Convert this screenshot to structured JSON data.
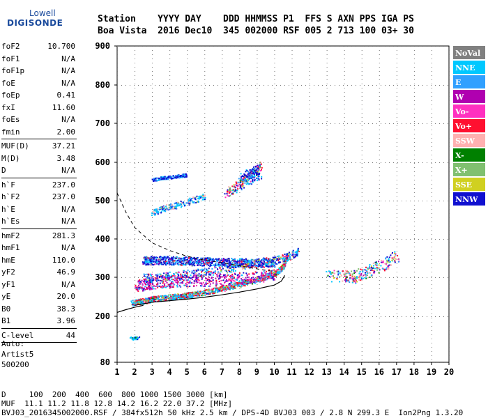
{
  "logo": {
    "line1": "Lowell",
    "line2": "DIGISONDE"
  },
  "header": {
    "line1": "Station    YYYY DAY    DDD HHMMSS P1  FFS S AXN PPS IGA PS",
    "line2": "Boa Vista  2016 Dec10  345 002000 RSF 005 2 713 100 03+ 30"
  },
  "params": [
    {
      "label": "foF2",
      "value": "10.700"
    },
    {
      "label": "foF1",
      "value": "N/A"
    },
    {
      "label": "foF1p",
      "value": "N/A"
    },
    {
      "label": "foE",
      "value": "N/A"
    },
    {
      "label": "foEp",
      "value": "0.41"
    },
    {
      "label": "fxI",
      "value": "11.60"
    },
    {
      "label": "foEs",
      "value": "N/A"
    },
    {
      "label": "fmin",
      "value": "2.00",
      "sep": true
    },
    {
      "label": "MUF(D)",
      "value": "37.21"
    },
    {
      "label": "M(D)",
      "value": "3.48"
    },
    {
      "label": "D",
      "value": "N/A",
      "sep": true
    },
    {
      "label": "h`F",
      "value": "237.0"
    },
    {
      "label": "h`F2",
      "value": "237.0"
    },
    {
      "label": "h`E",
      "value": "N/A"
    },
    {
      "label": "h`Es",
      "value": "N/A",
      "sep": true
    },
    {
      "label": "hmF2",
      "value": "281.3"
    },
    {
      "label": "hmF1",
      "value": "N/A"
    },
    {
      "label": "hmE",
      "value": "110.0"
    },
    {
      "label": "yF2",
      "value": "46.9"
    },
    {
      "label": "yF1",
      "value": "N/A"
    },
    {
      "label": "yE",
      "value": "20.0"
    },
    {
      "label": "B0",
      "value": "38.3"
    },
    {
      "label": "B1",
      "value": "3.96",
      "sep": true
    },
    {
      "label": "C-level",
      "value": "44",
      "sep": true
    }
  ],
  "auto": {
    "line1": "Auto:",
    "line2": "Artist5",
    "line3": "500200"
  },
  "footer": {
    "d_row": "D     100  200  400  600  800 1000 1500 3000 [km]",
    "muf_row": "MUF  11.1 11.2 11.8 12.8 14.2 16.2 22.0 37.2 [MHz]",
    "info_row": "BVJ03_2016345002000.RSF / 384fx512h 50 kHz 2.5 km / DPS-4D BVJ03 003 / 2.8 N 299.3 E  Ion2Png 1.3.20"
  },
  "chart_data": {
    "type": "scatter",
    "xlabel": "",
    "ylabel": "",
    "xlim": [
      1,
      20
    ],
    "ylim": [
      80,
      900
    ],
    "x_ticks": [
      1,
      2,
      3,
      4,
      5,
      6,
      7,
      8,
      9,
      10,
      11,
      12,
      13,
      14,
      15,
      16,
      17,
      18,
      19,
      20
    ],
    "y_ticks": [
      80,
      200,
      300,
      400,
      500,
      600,
      700,
      800,
      900
    ],
    "grid": true,
    "legend_position": "right",
    "legend": [
      {
        "name": "NoVal",
        "color": "#808080"
      },
      {
        "name": "NNE",
        "color": "#00c8ff"
      },
      {
        "name": "E",
        "color": "#30a0ff"
      },
      {
        "name": "W",
        "color": "#b000b0"
      },
      {
        "name": "Vo-",
        "color": "#ff30c0"
      },
      {
        "name": "Vo+",
        "color": "#ff1030"
      },
      {
        "name": "SSW",
        "color": "#ffb0b0"
      },
      {
        "name": "X-",
        "color": "#008000"
      },
      {
        "name": "X+",
        "color": "#80c070"
      },
      {
        "name": "SSE",
        "color": "#d0d020"
      },
      {
        "name": "NNW",
        "color": "#1010d0"
      }
    ],
    "traces": [
      {
        "name": "O trace",
        "x": [
          1.8,
          2.5,
          3,
          4,
          5,
          6,
          7,
          8,
          9,
          10,
          10.5,
          10.7
        ],
        "y": [
          235,
          240,
          245,
          250,
          255,
          262,
          272,
          283,
          295,
          310,
          330,
          360
        ]
      },
      {
        "name": "X trace",
        "x": [
          2.5,
          3,
          4,
          5,
          6,
          7,
          8,
          9,
          10,
          10.8,
          11.4
        ],
        "y": [
          300,
          300,
          305,
          310,
          315,
          320,
          330,
          340,
          345,
          355,
          370
        ]
      },
      {
        "name": "O trace upper",
        "x": [
          2.5,
          3,
          4,
          5,
          6,
          7,
          8,
          9,
          10
        ],
        "y": [
          345,
          345,
          345,
          343,
          342,
          340,
          340,
          338,
          340
        ]
      },
      {
        "name": "F layer spread",
        "x": [
          2,
          2.5,
          3,
          4,
          5,
          6,
          7,
          8,
          9,
          10
        ],
        "y": [
          278,
          282,
          286,
          290,
          292,
          293,
          295,
          298,
          302,
          310
        ]
      },
      {
        "name": "multiple hop",
        "x": [
          3,
          3.5,
          4,
          4.5,
          5
        ],
        "y": [
          555,
          560,
          562,
          565,
          568
        ]
      },
      {
        "name": "multiple hop 2",
        "x": [
          3,
          3.5,
          4,
          4.5,
          5,
          5.5,
          6
        ],
        "y": [
          470,
          478,
          485,
          490,
          498,
          505,
          512
        ]
      },
      {
        "name": "spread 2",
        "x": [
          7.2,
          7.6,
          8,
          8.4,
          8.8,
          9.2
        ],
        "y": [
          520,
          530,
          545,
          560,
          575,
          590
        ]
      },
      {
        "name": "spread 3",
        "x": [
          8,
          8.4,
          8.8,
          9.2
        ],
        "y": [
          550,
          560,
          570,
          580
        ]
      },
      {
        "name": "far",
        "x": [
          13,
          14,
          14.5,
          15,
          15.5,
          16,
          16.5,
          17
        ],
        "y": [
          305,
          305,
          300,
          310,
          320,
          330,
          340,
          360
        ]
      },
      {
        "name": "low",
        "x": [
          1.8,
          2,
          2.2
        ],
        "y": [
          145,
          143,
          147
        ]
      }
    ],
    "profile_curve": {
      "x": [
        2.0,
        2.5,
        3,
        4,
        5,
        6,
        7,
        8,
        9,
        10,
        10.4,
        10.6
      ],
      "y": [
        228,
        232,
        236,
        240,
        244,
        249,
        255,
        262,
        270,
        280,
        290,
        305
      ]
    },
    "profile_low": {
      "x": [
        1,
        1.5,
        2,
        2.5
      ],
      "y": [
        210,
        217,
        223,
        228
      ]
    },
    "muf_dashed": {
      "x": [
        1,
        1.5,
        2,
        3,
        4,
        5,
        6,
        7,
        8,
        9,
        10
      ],
      "y": [
        520,
        470,
        430,
        390,
        370,
        355,
        345,
        338,
        330,
        322,
        315
      ]
    }
  }
}
